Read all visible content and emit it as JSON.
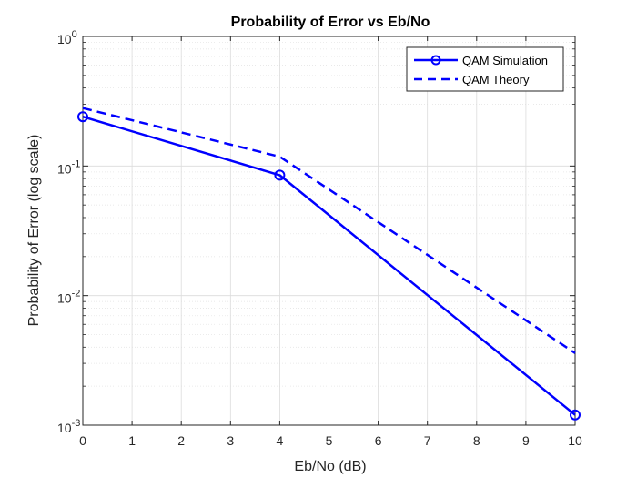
{
  "chart_data": {
    "type": "line",
    "title": "Probability of Error vs Eb/No",
    "xlabel": "Eb/No (dB)",
    "ylabel": "Probability of Error (log scale)",
    "xlim": [
      0,
      10
    ],
    "ylim": [
      0.001,
      1
    ],
    "yscale": "log",
    "grid": true,
    "minor_grid": true,
    "legend_position": "top-right",
    "x_ticks": [
      "0",
      "1",
      "2",
      "3",
      "4",
      "5",
      "6",
      "7",
      "8",
      "9",
      "10"
    ],
    "y_ticks": [
      {
        "base": "10",
        "exp": "-3"
      },
      {
        "base": "10",
        "exp": "-2"
      },
      {
        "base": "10",
        "exp": "-1"
      },
      {
        "base": "10",
        "exp": "0"
      }
    ],
    "series": [
      {
        "name": "QAM Simulation",
        "style": "solid",
        "marker": "circle",
        "color": "#0000ff",
        "x": [
          0,
          4,
          10
        ],
        "values": [
          0.24,
          0.085,
          0.0012
        ]
      },
      {
        "name": "QAM Theory",
        "style": "dashed",
        "marker": "none",
        "color": "#0000ff",
        "x": [
          0,
          4,
          10
        ],
        "values": [
          0.28,
          0.118,
          0.0036
        ]
      }
    ]
  }
}
